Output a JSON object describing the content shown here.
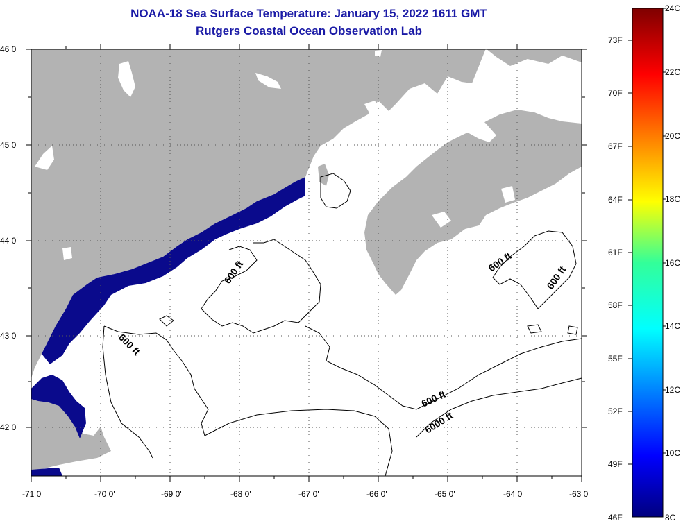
{
  "title": {
    "line1": "NOAA-18 Sea Surface Temperature:  January 15, 2022 1611 GMT",
    "line2": "Rutgers Coastal Ocean Observation Lab"
  },
  "map": {
    "lat_labels": [
      "46 0'",
      "45 0'",
      "44 0'",
      "43 0'",
      "42 0'"
    ],
    "lon_labels": [
      "-71 0'",
      "-70 0'",
      "-69 0'",
      "-68 0'",
      "-67 0'",
      "-66 0'",
      "-65 0'",
      "-64 0'",
      "-63 0'"
    ],
    "contour_labels": [
      "600 ft",
      "600 ft",
      "600 ft",
      "600 ft",
      "600 ft",
      "6000 ft"
    ],
    "colors": {
      "land": "#b3b3b3",
      "cold_water": "#0a0a8c",
      "cloud": "#ffffff"
    }
  },
  "colorbar": {
    "fahrenheit": [
      "73F",
      "70F",
      "67F",
      "64F",
      "61F",
      "58F",
      "55F",
      "52F",
      "49F",
      "46F"
    ],
    "celsius": [
      "24C",
      "22C",
      "20C",
      "18C",
      "16C",
      "14C",
      "12C",
      "10C",
      "8C"
    ]
  }
}
